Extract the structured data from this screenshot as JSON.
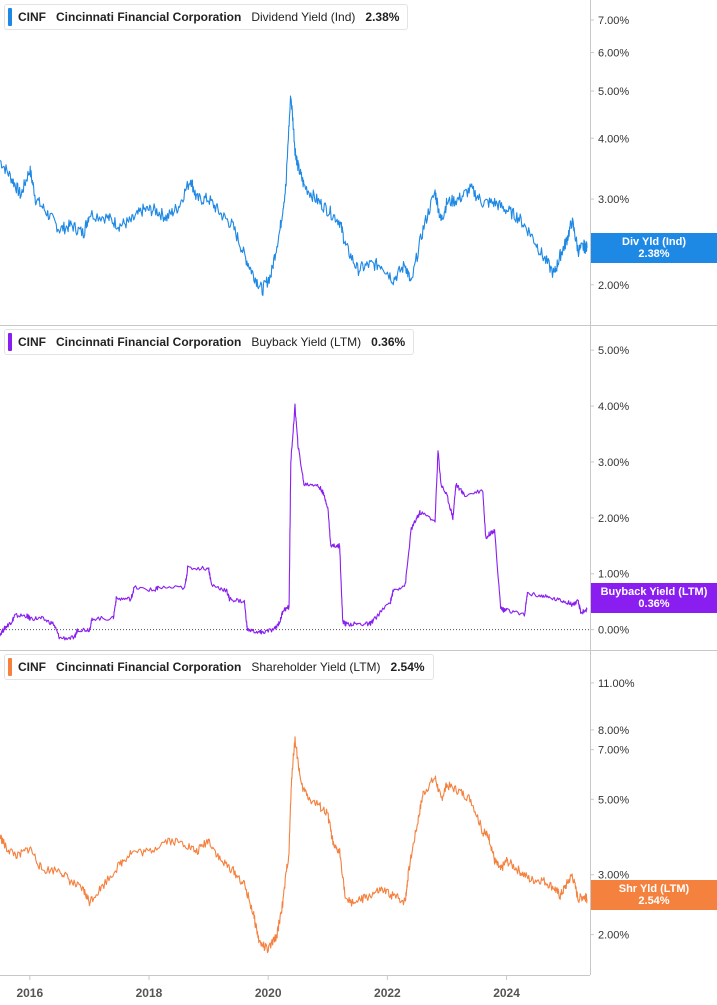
{
  "panels": [
    {
      "ticker": "CINF",
      "company": "Cincinnati Financial Corporation",
      "metric": "Dividend Yield (Ind)",
      "value": "2.38%",
      "color": "#1e88e5",
      "badge_label": "Div Yld (Ind)",
      "badge_value": "2.38%"
    },
    {
      "ticker": "CINF",
      "company": "Cincinnati Financial Corporation",
      "metric": "Buyback Yield (LTM)",
      "value": "0.36%",
      "color": "#8a1ef0",
      "badge_label": "Buyback Yield (LTM)",
      "badge_value": "0.36%"
    },
    {
      "ticker": "CINF",
      "company": "Cincinnati Financial Corporation",
      "metric": "Shareholder Yield (LTM)",
      "value": "2.54%",
      "color": "#f5813f",
      "badge_label": "Shr Yld (LTM)",
      "badge_value": "2.54%"
    }
  ],
  "chart_data": [
    {
      "type": "line",
      "scale": "log",
      "grid": false,
      "ylim": [
        1.75,
        7.2
      ],
      "y_ticks": [
        "7.00%",
        "6.00%",
        "5.00%",
        "4.00%",
        "3.00%",
        "2.00%"
      ],
      "y_tick_values": [
        7,
        6,
        5,
        4,
        3,
        2
      ],
      "x_ticks": [
        "2016",
        "2018",
        "2020",
        "2022",
        "2024"
      ],
      "xlim": [
        2015.5,
        2025.4
      ],
      "series": [
        {
          "name": "Dividend Yield (Ind)",
          "color": "#1e88e5",
          "x": [
            2015.5,
            2015.7,
            2015.85,
            2016.0,
            2016.1,
            2016.3,
            2016.5,
            2016.7,
            2016.9,
            2017.0,
            2017.3,
            2017.5,
            2017.7,
            2017.9,
            2018.1,
            2018.3,
            2018.5,
            2018.7,
            2018.8,
            2019.0,
            2019.2,
            2019.4,
            2019.6,
            2019.75,
            2019.9,
            2020.05,
            2020.2,
            2020.3,
            2020.38,
            2020.45,
            2020.5,
            2020.6,
            2020.8,
            2021.0,
            2021.2,
            2021.3,
            2021.5,
            2021.7,
            2021.9,
            2022.1,
            2022.3,
            2022.4,
            2022.6,
            2022.8,
            2022.9,
            2023.0,
            2023.2,
            2023.4,
            2023.6,
            2023.8,
            2024.0,
            2024.2,
            2024.4,
            2024.6,
            2024.8,
            2024.9,
            2025.0,
            2025.1,
            2025.2,
            2025.3,
            2025.35
          ],
          "y": [
            3.6,
            3.3,
            3.05,
            3.45,
            3.0,
            2.8,
            2.6,
            2.65,
            2.55,
            2.8,
            2.75,
            2.65,
            2.7,
            2.85,
            2.85,
            2.75,
            2.9,
            3.3,
            3.0,
            3.0,
            2.8,
            2.65,
            2.3,
            2.1,
            1.95,
            2.1,
            2.6,
            3.2,
            4.9,
            3.8,
            3.5,
            3.2,
            3.0,
            2.85,
            2.7,
            2.4,
            2.15,
            2.2,
            2.2,
            2.05,
            2.2,
            2.0,
            2.6,
            3.1,
            2.7,
            2.95,
            3.0,
            3.15,
            2.95,
            2.95,
            2.85,
            2.75,
            2.55,
            2.3,
            2.1,
            2.3,
            2.45,
            2.7,
            2.35,
            2.4,
            2.38
          ]
        }
      ]
    },
    {
      "type": "line",
      "grid": false,
      "ylim": [
        -0.15,
        5.2
      ],
      "y_ticks": [
        "5.00%",
        "4.00%",
        "3.00%",
        "2.00%",
        "1.00%",
        "0.00%"
      ],
      "y_tick_values": [
        5,
        4,
        3,
        2,
        1,
        0
      ],
      "zero_line": true,
      "x_ticks": [
        "2016",
        "2018",
        "2020",
        "2022",
        "2024"
      ],
      "xlim": [
        2015.5,
        2025.4
      ],
      "series": [
        {
          "name": "Buyback Yield (LTM)",
          "color": "#8a1ef0",
          "x": [
            2015.5,
            2015.6,
            2015.7,
            2015.75,
            2015.95,
            2016.0,
            2016.2,
            2016.4,
            2016.5,
            2016.75,
            2016.8,
            2017.0,
            2017.05,
            2017.4,
            2017.45,
            2017.7,
            2017.75,
            2018.1,
            2018.15,
            2018.6,
            2018.65,
            2019.0,
            2019.05,
            2019.3,
            2019.35,
            2019.6,
            2019.65,
            2019.85,
            2019.9,
            2020.1,
            2020.2,
            2020.25,
            2020.35,
            2020.38,
            2020.45,
            2020.5,
            2020.6,
            2020.8,
            2020.9,
            2021.0,
            2021.05,
            2021.2,
            2021.25,
            2021.3,
            2021.5,
            2021.7,
            2021.75,
            2022.05,
            2022.1,
            2022.3,
            2022.4,
            2022.5,
            2022.55,
            2022.8,
            2022.85,
            2022.9,
            2023.0,
            2023.1,
            2023.15,
            2023.3,
            2023.6,
            2023.65,
            2023.75,
            2023.8,
            2023.9,
            2023.95,
            2024.0,
            2024.3,
            2024.35,
            2024.6,
            2024.8,
            2025.0,
            2025.1,
            2025.2,
            2025.25,
            2025.35
          ],
          "y": [
            -0.08,
            0.05,
            0.15,
            0.25,
            0.25,
            0.2,
            0.2,
            0.1,
            -0.15,
            -0.15,
            0.0,
            0.0,
            0.2,
            0.2,
            0.55,
            0.55,
            0.75,
            0.7,
            0.75,
            0.75,
            1.1,
            1.1,
            0.8,
            0.7,
            0.55,
            0.5,
            0.0,
            -0.05,
            -0.05,
            0.0,
            0.15,
            0.35,
            0.4,
            3.0,
            4.0,
            3.3,
            2.6,
            2.6,
            2.5,
            2.2,
            1.5,
            1.5,
            0.15,
            0.1,
            0.1,
            0.1,
            0.15,
            0.5,
            0.7,
            0.8,
            1.8,
            2.0,
            2.1,
            1.95,
            3.2,
            2.6,
            2.4,
            2.0,
            2.6,
            2.4,
            2.5,
            1.65,
            1.75,
            1.75,
            0.4,
            0.35,
            0.35,
            0.25,
            0.65,
            0.6,
            0.55,
            0.5,
            0.45,
            0.5,
            0.3,
            0.36
          ]
        }
      ]
    },
    {
      "type": "line",
      "scale": "log",
      "grid": false,
      "ylim": [
        1.65,
        12.5
      ],
      "y_ticks": [
        "11.00%",
        "8.00%",
        "7.00%",
        "5.00%",
        "3.00%",
        "2.00%"
      ],
      "y_tick_values": [
        11,
        8,
        7,
        5,
        3,
        2
      ],
      "x_ticks": [
        "2016",
        "2018",
        "2020",
        "2022",
        "2024"
      ],
      "xlim": [
        2015.5,
        2025.4
      ],
      "series": [
        {
          "name": "Shareholder Yield (LTM)",
          "color": "#f5813f",
          "x": [
            2015.5,
            2015.6,
            2015.8,
            2016.0,
            2016.2,
            2016.5,
            2016.7,
            2016.9,
            2017.0,
            2017.2,
            2017.5,
            2017.7,
            2018.0,
            2018.3,
            2018.6,
            2018.8,
            2019.0,
            2019.2,
            2019.4,
            2019.6,
            2019.75,
            2019.85,
            2020.0,
            2020.15,
            2020.25,
            2020.35,
            2020.4,
            2020.45,
            2020.55,
            2020.7,
            2020.85,
            2021.0,
            2021.1,
            2021.2,
            2021.3,
            2021.5,
            2021.7,
            2021.9,
            2022.1,
            2022.3,
            2022.35,
            2022.5,
            2022.6,
            2022.8,
            2022.9,
            2023.0,
            2023.2,
            2023.4,
            2023.6,
            2023.7,
            2023.8,
            2023.9,
            2024.0,
            2024.2,
            2024.4,
            2024.6,
            2024.8,
            2024.9,
            2025.0,
            2025.1,
            2025.2,
            2025.3,
            2025.35
          ],
          "y": [
            3.9,
            3.6,
            3.4,
            3.6,
            3.1,
            3.1,
            2.85,
            2.7,
            2.5,
            2.75,
            3.2,
            3.5,
            3.5,
            3.8,
            3.7,
            3.5,
            3.8,
            3.3,
            3.1,
            2.8,
            2.3,
            1.9,
            1.8,
            2.0,
            2.5,
            3.5,
            6.0,
            7.5,
            5.5,
            5.0,
            4.8,
            4.5,
            3.6,
            3.5,
            2.5,
            2.5,
            2.6,
            2.7,
            2.6,
            2.5,
            3.0,
            4.2,
            5.2,
            5.8,
            5.0,
            5.5,
            5.3,
            5.0,
            4.0,
            3.9,
            3.3,
            3.1,
            3.3,
            3.1,
            2.9,
            2.9,
            2.75,
            2.6,
            2.8,
            3.0,
            2.55,
            2.6,
            2.54
          ]
        }
      ]
    }
  ]
}
